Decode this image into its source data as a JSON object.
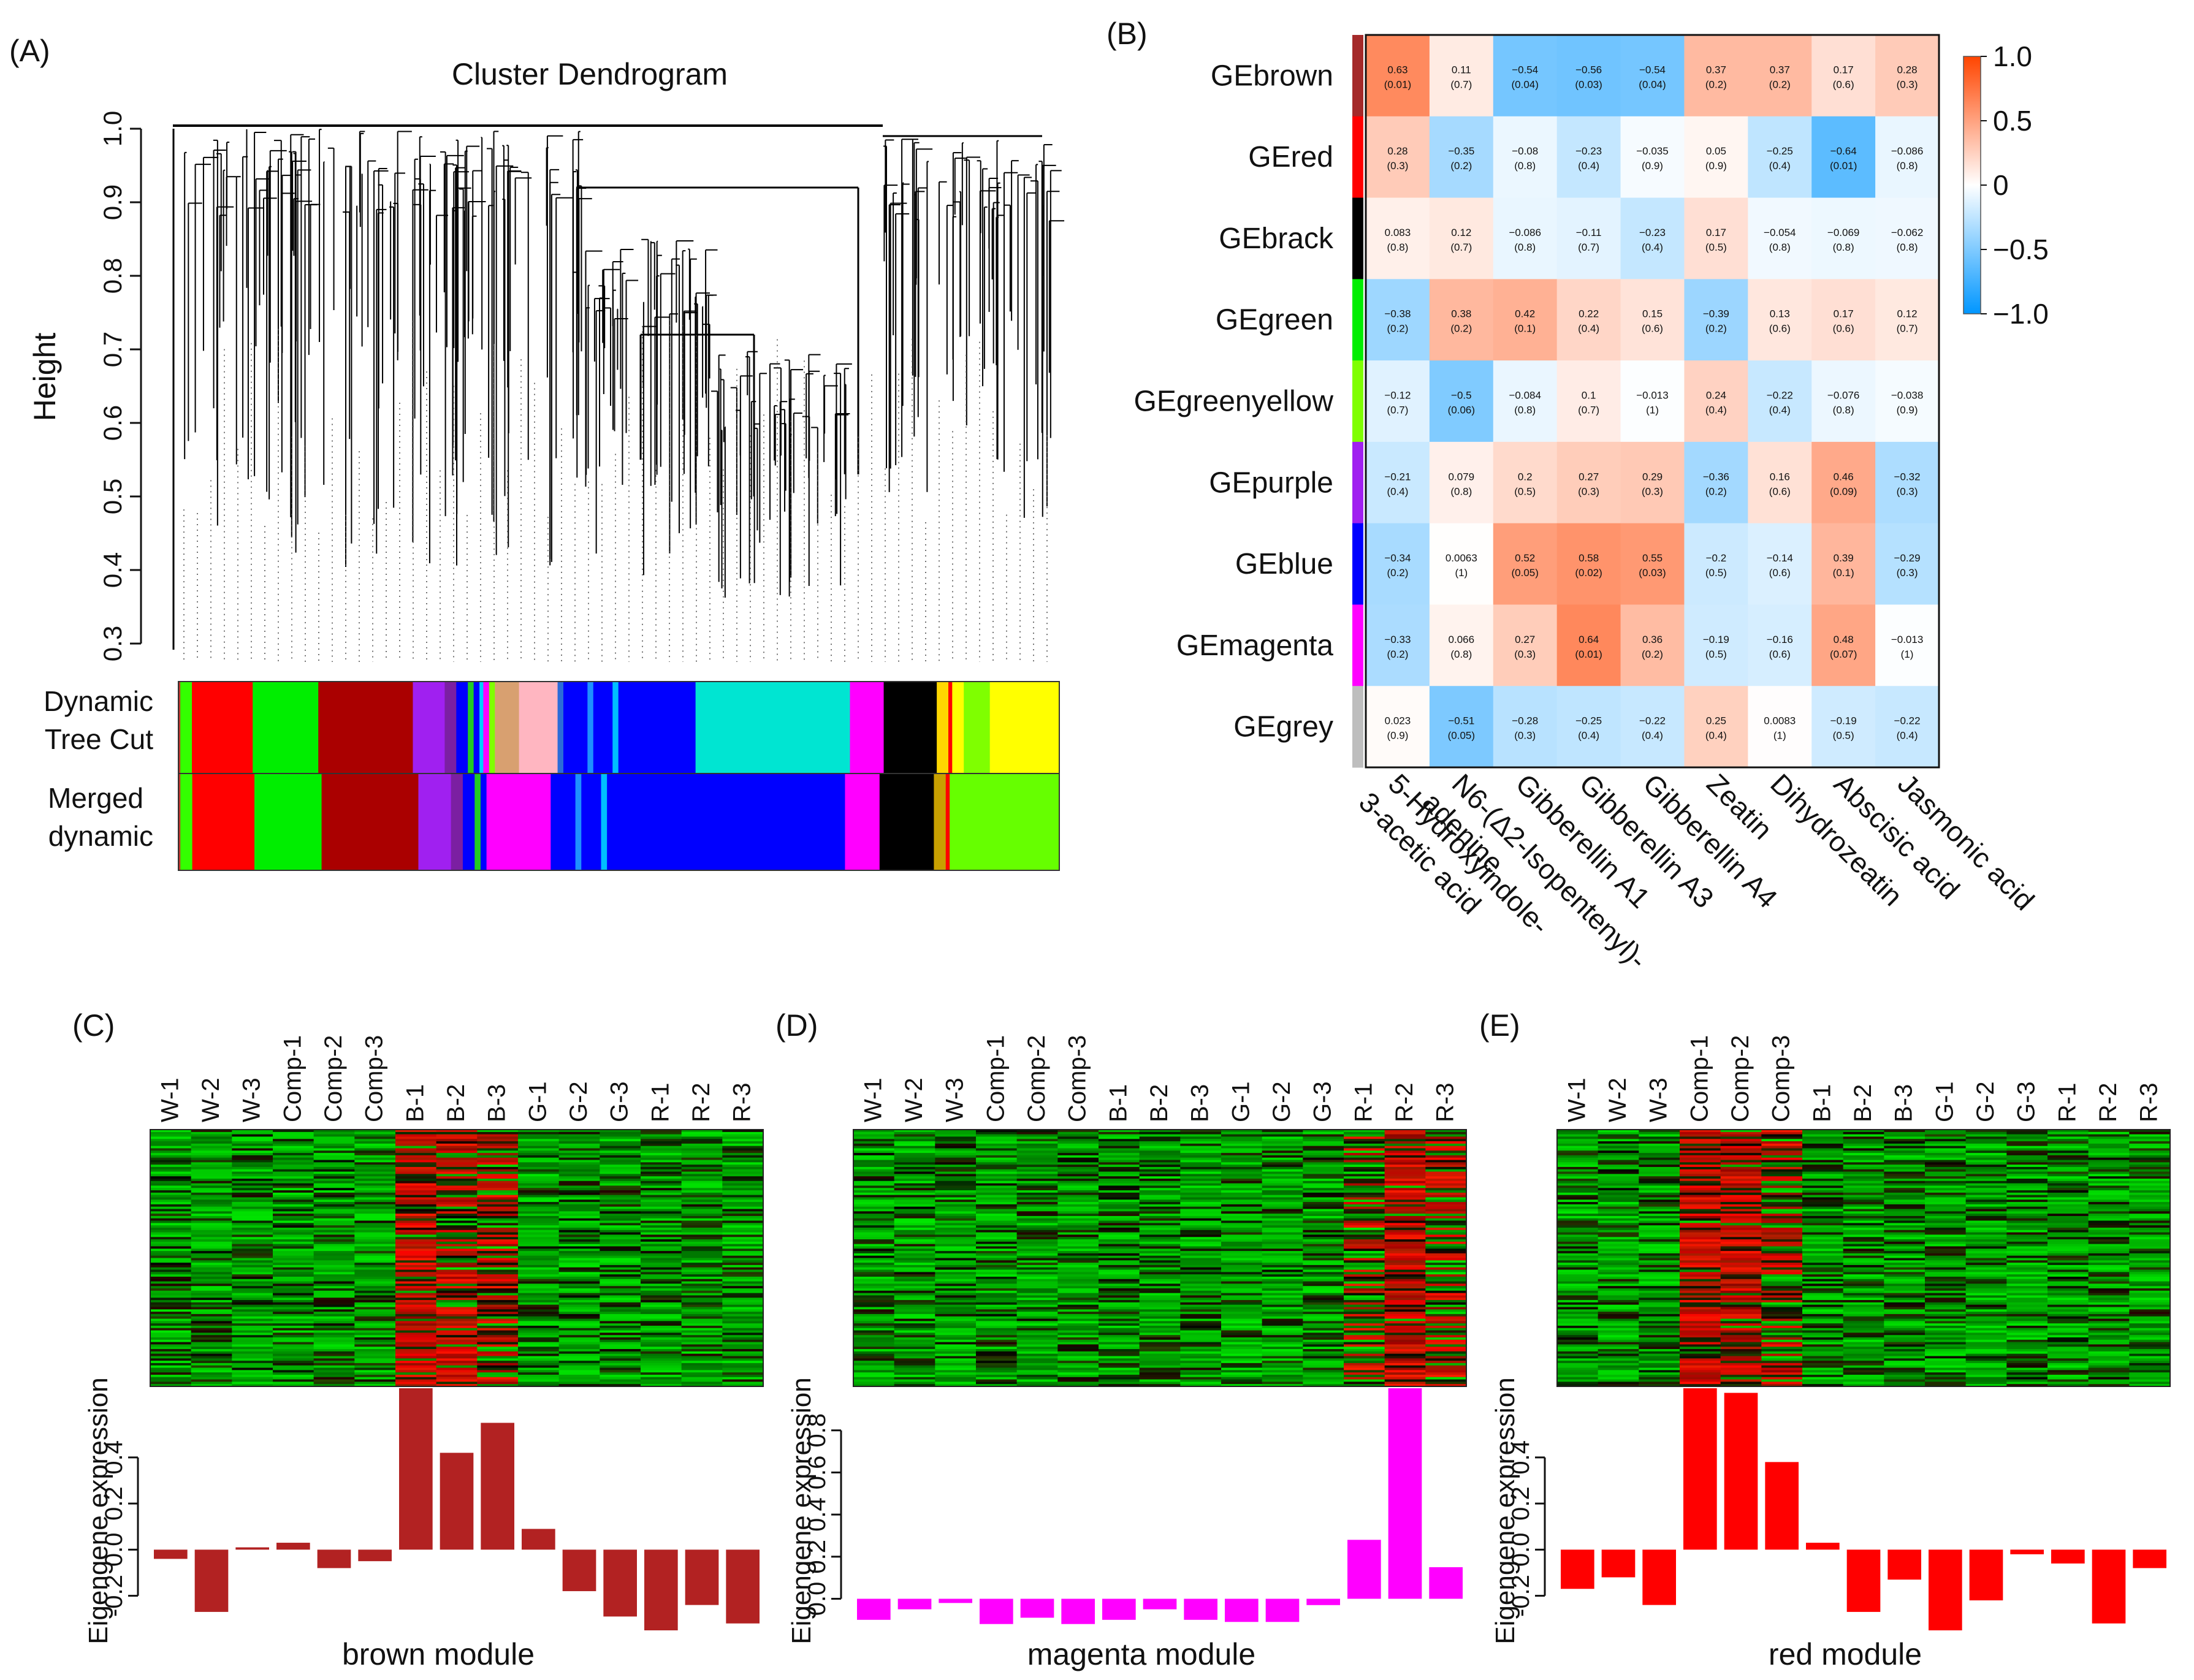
{
  "panel_labels": {
    "a": "(A)",
    "b": "(B)",
    "c": "(C)",
    "d": "(D)",
    "e": "(E)"
  },
  "dendrogram": {
    "title": "Cluster Dendrogram",
    "ylabel": "Height",
    "yticks": [
      "0.3",
      "0.4",
      "0.5",
      "0.6",
      "0.7",
      "0.8",
      "0.9",
      "1.0"
    ],
    "row_labels": {
      "dynamic_1": "Dynamic",
      "dynamic_2": "Tree Cut",
      "merged_1": "Merged",
      "merged_2": "dynamic"
    },
    "dynamic_tree_cut": [
      {
        "c": "#c0392b",
        "w": 0.002
      },
      {
        "c": "#33ff00",
        "w": 0.012
      },
      {
        "c": "#ff0000",
        "w": 0.063
      },
      {
        "c": "#00ee00",
        "w": 0.068
      },
      {
        "c": "#aa0000",
        "w": 0.098
      },
      {
        "c": "#a020f0",
        "w": 0.033
      },
      {
        "c": "#7b1fa2",
        "w": 0.012
      },
      {
        "c": "#0000ff",
        "w": 0.012
      },
      {
        "c": "#22cc22",
        "w": 0.006
      },
      {
        "c": "#0000ff",
        "w": 0.006
      },
      {
        "c": "#00ccff",
        "w": 0.004
      },
      {
        "c": "#ff00ff",
        "w": 0.006
      },
      {
        "c": "#7fff00",
        "w": 0.006
      },
      {
        "c": "#d8a070",
        "w": 0.025
      },
      {
        "c": "#ffb6c1",
        "w": 0.04
      },
      {
        "c": "#2b6bd8",
        "w": 0.006
      },
      {
        "c": "#0000ff",
        "w": 0.025
      },
      {
        "c": "#1e90ff",
        "w": 0.006
      },
      {
        "c": "#0000ff",
        "w": 0.02
      },
      {
        "c": "#00bfff",
        "w": 0.006
      },
      {
        "c": "#0000ff",
        "w": 0.08
      },
      {
        "c": "#00e5d2",
        "w": 0.16
      },
      {
        "c": "#ff00ff",
        "w": 0.035
      },
      {
        "c": "#000000",
        "w": 0.055
      },
      {
        "c": "#ffd700",
        "w": 0.012
      },
      {
        "c": "#ff0000",
        "w": 0.004
      },
      {
        "c": "#ffff00",
        "w": 0.012
      },
      {
        "c": "#7fff00",
        "w": 0.027
      },
      {
        "c": "#ffff00",
        "w": 0.072
      }
    ],
    "merged_dynamic": [
      {
        "c": "#c0392b",
        "w": 0.002
      },
      {
        "c": "#33ff00",
        "w": 0.012
      },
      {
        "c": "#ff0000",
        "w": 0.063
      },
      {
        "c": "#00ee00",
        "w": 0.068
      },
      {
        "c": "#aa0000",
        "w": 0.098
      },
      {
        "c": "#a020f0",
        "w": 0.033
      },
      {
        "c": "#7b1fa2",
        "w": 0.012
      },
      {
        "c": "#0000ff",
        "w": 0.012
      },
      {
        "c": "#22cc22",
        "w": 0.006
      },
      {
        "c": "#0000ff",
        "w": 0.006
      },
      {
        "c": "#ff00ff",
        "w": 0.065
      },
      {
        "c": "#0000ff",
        "w": 0.025
      },
      {
        "c": "#1e90ff",
        "w": 0.006
      },
      {
        "c": "#0000ff",
        "w": 0.02
      },
      {
        "c": "#00bfff",
        "w": 0.006
      },
      {
        "c": "#0000ff",
        "w": 0.241
      },
      {
        "c": "#ff00ff",
        "w": 0.035
      },
      {
        "c": "#000000",
        "w": 0.055
      },
      {
        "c": "#c8a000",
        "w": 0.012
      },
      {
        "c": "#ff0000",
        "w": 0.004
      },
      {
        "c": "#66ff00",
        "w": 0.111
      }
    ]
  },
  "heatmap_b": {
    "rows": [
      "GEbrown",
      "GEred",
      "GEbrack",
      "GEgreen",
      "GEgreenyellow",
      "GEpurple",
      "GEblue",
      "GEmagenta",
      "GEgrey"
    ],
    "row_colors": [
      "#a52a2a",
      "#ff0000",
      "#000000",
      "#00ee00",
      "#7fff00",
      "#a020f0",
      "#0000ff",
      "#ff00ff",
      "#bebebe"
    ],
    "columns": [
      [
        "5-Hydroxyindole-",
        "3-acetic acid"
      ],
      [
        "N6-(Δ2-Isopentenyl)-",
        "adenine"
      ],
      [
        "Gibberellin A1"
      ],
      [
        "Gibberellin A3"
      ],
      [
        "Gibberellin A4"
      ],
      [
        "Zeatin"
      ],
      [
        "Dihydrozeatin"
      ],
      [
        "Abscisic acid"
      ],
      [
        "Jasmonic acid"
      ]
    ],
    "colorbar_ticks": [
      "1.0",
      "0.5",
      "0",
      "−0.5",
      "−1.0"
    ],
    "cells": [
      [
        [
          "0.63",
          "(0.01)"
        ],
        [
          "0.11",
          "(0.7)"
        ],
        [
          "−0.54",
          "(0.04)"
        ],
        [
          "−0.56",
          "(0.03)"
        ],
        [
          "−0.54",
          "(0.04)"
        ],
        [
          "0.37",
          "(0.2)"
        ],
        [
          "0.37",
          "(0.2)"
        ],
        [
          "0.17",
          "(0.6)"
        ],
        [
          "0.28",
          "(0.3)"
        ]
      ],
      [
        [
          "0.28",
          "(0.3)"
        ],
        [
          "−0.35",
          "(0.2)"
        ],
        [
          "−0.08",
          "(0.8)"
        ],
        [
          "−0.23",
          "(0.4)"
        ],
        [
          "−0.035",
          "(0.9)"
        ],
        [
          "0.05",
          "(0.9)"
        ],
        [
          "−0.25",
          "(0.4)"
        ],
        [
          "−0.64",
          "(0.01)"
        ],
        [
          "−0.086",
          "(0.8)"
        ]
      ],
      [
        [
          "0.083",
          "(0.8)"
        ],
        [
          "0.12",
          "(0.7)"
        ],
        [
          "−0.086",
          "(0.8)"
        ],
        [
          "−0.11",
          "(0.7)"
        ],
        [
          "−0.23",
          "(0.4)"
        ],
        [
          "0.17",
          "(0.5)"
        ],
        [
          "−0.054",
          "(0.8)"
        ],
        [
          "−0.069",
          "(0.8)"
        ],
        [
          "−0.062",
          "(0.8)"
        ]
      ],
      [
        [
          "−0.38",
          "(0.2)"
        ],
        [
          "0.38",
          "(0.2)"
        ],
        [
          "0.42",
          "(0.1)"
        ],
        [
          "0.22",
          "(0.4)"
        ],
        [
          "0.15",
          "(0.6)"
        ],
        [
          "−0.39",
          "(0.2)"
        ],
        [
          "0.13",
          "(0.6)"
        ],
        [
          "0.17",
          "(0.6)"
        ],
        [
          "0.12",
          "(0.7)"
        ]
      ],
      [
        [
          "−0.12",
          "(0.7)"
        ],
        [
          "−0.5",
          "(0.06)"
        ],
        [
          "−0.084",
          "(0.8)"
        ],
        [
          "0.1",
          "(0.7)"
        ],
        [
          "−0.013",
          "(1)"
        ],
        [
          "0.24",
          "(0.4)"
        ],
        [
          "−0.22",
          "(0.4)"
        ],
        [
          "−0.076",
          "(0.8)"
        ],
        [
          "−0.038",
          "(0.9)"
        ]
      ],
      [
        [
          "−0.21",
          "(0.4)"
        ],
        [
          "0.079",
          "(0.8)"
        ],
        [
          "0.2",
          "(0.5)"
        ],
        [
          "0.27",
          "(0.3)"
        ],
        [
          "0.29",
          "(0.3)"
        ],
        [
          "−0.36",
          "(0.2)"
        ],
        [
          "0.16",
          "(0.6)"
        ],
        [
          "0.46",
          "(0.09)"
        ],
        [
          "−0.32",
          "(0.3)"
        ]
      ],
      [
        [
          "−0.34",
          "(0.2)"
        ],
        [
          "0.0063",
          "(1)"
        ],
        [
          "0.52",
          "(0.05)"
        ],
        [
          "0.58",
          "(0.02)"
        ],
        [
          "0.55",
          "(0.03)"
        ],
        [
          "−0.2",
          "(0.5)"
        ],
        [
          "−0.14",
          "(0.6)"
        ],
        [
          "0.39",
          "(0.1)"
        ],
        [
          "−0.29",
          "(0.3)"
        ]
      ],
      [
        [
          "−0.33",
          "(0.2)"
        ],
        [
          "0.066",
          "(0.8)"
        ],
        [
          "0.27",
          "(0.3)"
        ],
        [
          "0.64",
          "(0.01)"
        ],
        [
          "0.36",
          "(0.2)"
        ],
        [
          "−0.19",
          "(0.5)"
        ],
        [
          "−0.16",
          "(0.6)"
        ],
        [
          "0.48",
          "(0.07)"
        ],
        [
          "−0.013",
          "(1)"
        ]
      ],
      [
        [
          "0.023",
          "(0.9)"
        ],
        [
          "−0.51",
          "(0.05)"
        ],
        [
          "−0.28",
          "(0.3)"
        ],
        [
          "−0.25",
          "(0.4)"
        ],
        [
          "−0.22",
          "(0.4)"
        ],
        [
          "0.25",
          "(0.4)"
        ],
        [
          "0.0083",
          "(1)"
        ],
        [
          "−0.19",
          "(0.5)"
        ],
        [
          "−0.22",
          "(0.4)"
        ]
      ]
    ]
  },
  "sample_labels": [
    "W-1",
    "W-2",
    "W-3",
    "Comp-1",
    "Comp-2",
    "Comp-3",
    "B-1",
    "B-2",
    "B-3",
    "G-1",
    "G-2",
    "G-3",
    "R-1",
    "R-2",
    "R-3"
  ],
  "chart_data": [
    {
      "type": "bar",
      "title": "brown module",
      "ylabel": "Eigengene expression",
      "color": "#b22222",
      "categories": [
        "W-1",
        "W-2",
        "W-3",
        "Comp-1",
        "Comp-2",
        "Comp-3",
        "B-1",
        "B-2",
        "B-3",
        "G-1",
        "G-2",
        "G-3",
        "R-1",
        "R-2",
        "R-3"
      ],
      "values": [
        -0.04,
        -0.27,
        0.01,
        0.03,
        -0.08,
        -0.05,
        0.7,
        0.42,
        0.55,
        0.09,
        -0.18,
        -0.29,
        -0.35,
        -0.24,
        -0.32
      ],
      "ylim": [
        -0.35,
        0.7
      ],
      "yticks": [
        "-0.2",
        "0.0",
        "0.2",
        "0.4"
      ]
    },
    {
      "type": "bar",
      "title": "magenta module",
      "ylabel": "Eigengene expression",
      "color": "#ff00ff",
      "categories": [
        "W-1",
        "W-2",
        "W-3",
        "Comp-1",
        "Comp-2",
        "Comp-3",
        "B-1",
        "B-2",
        "B-3",
        "G-1",
        "G-2",
        "G-3",
        "R-1",
        "R-2",
        "R-3"
      ],
      "values": [
        -0.1,
        -0.05,
        -0.02,
        -0.12,
        -0.09,
        -0.12,
        -0.1,
        -0.05,
        -0.1,
        -0.11,
        -0.11,
        -0.03,
        0.28,
        1.0,
        0.15
      ],
      "ylim": [
        -0.15,
        1.0
      ],
      "yticks": [
        "0.0",
        "0.2",
        "0.4",
        "0.6",
        "0.8"
      ]
    },
    {
      "type": "bar",
      "title": "red module",
      "ylabel": "Eigengene expression",
      "color": "#ff0000",
      "categories": [
        "W-1",
        "W-2",
        "W-3",
        "Comp-1",
        "Comp-2",
        "Comp-3",
        "B-1",
        "B-2",
        "B-3",
        "G-1",
        "G-2",
        "G-3",
        "R-1",
        "R-2",
        "R-3"
      ],
      "values": [
        -0.17,
        -0.12,
        -0.24,
        0.7,
        0.68,
        0.38,
        0.03,
        -0.27,
        -0.13,
        -0.35,
        -0.22,
        -0.02,
        -0.06,
        -0.32,
        -0.08
      ],
      "ylim": [
        -0.35,
        0.7
      ],
      "yticks": [
        "-0.2",
        "0.0",
        "0.2",
        "0.4"
      ]
    }
  ]
}
